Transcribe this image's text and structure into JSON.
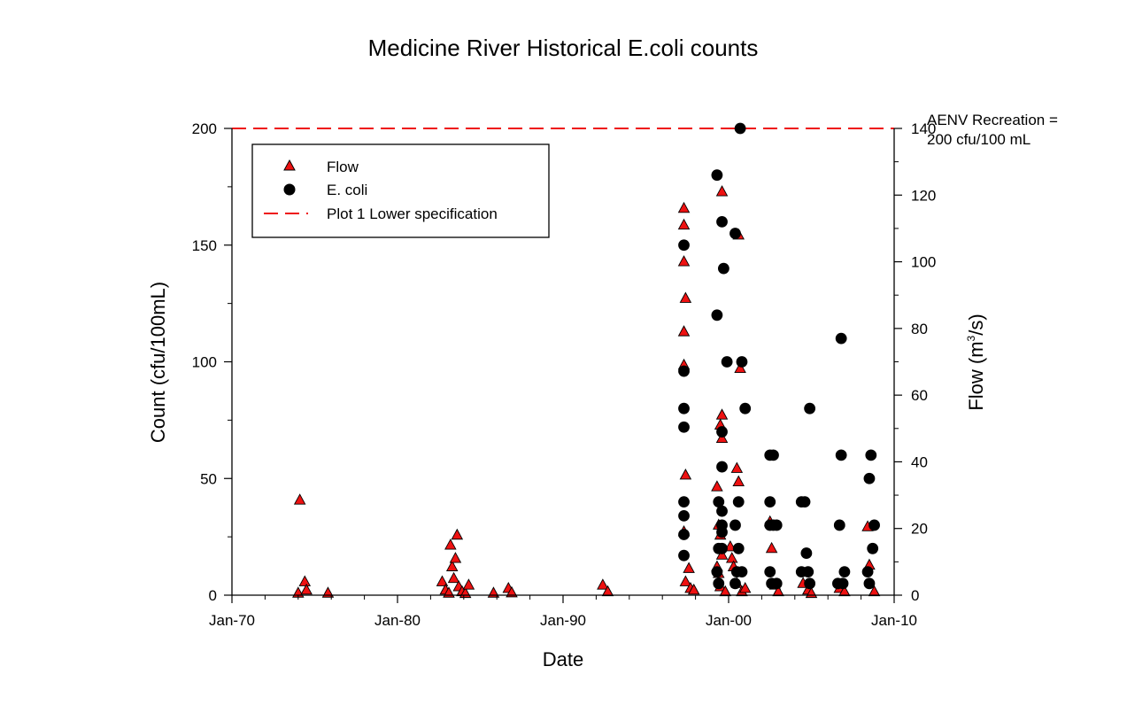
{
  "chart_data": {
    "type": "scatter",
    "title": "Medicine River Historical E.coli counts",
    "xlabel": "Date",
    "ylabel": "Count (cfu/100mL)",
    "y2label_main": "Flow (m",
    "y2label_sup": "3",
    "y2label_end": "/s)",
    "xlim": [
      1970,
      2010
    ],
    "ylim": [
      0,
      200
    ],
    "y2lim": [
      0,
      140
    ],
    "x_ticks": [
      {
        "value": 1970,
        "label": "Jan-70"
      },
      {
        "value": 1980,
        "label": "Jan-80"
      },
      {
        "value": 1990,
        "label": "Jan-90"
      },
      {
        "value": 2000,
        "label": "Jan-00"
      },
      {
        "value": 2010,
        "label": "Jan-10"
      }
    ],
    "y_ticks": [
      0,
      50,
      100,
      150,
      200
    ],
    "y2_ticks": [
      0,
      20,
      40,
      60,
      80,
      100,
      120,
      140
    ],
    "grid": false,
    "legend_position": "top-left",
    "legend": [
      {
        "label": "Flow",
        "marker": "triangle"
      },
      {
        "label": "E. coli",
        "marker": "circle"
      },
      {
        "label": "Plot 1 Lower specification",
        "marker": "dashed-line"
      }
    ],
    "annotation": [
      "AENV Recreation =",
      "200 cfu/100 mL"
    ],
    "reference_line": {
      "name": "Plot 1 Lower specification",
      "y": 200
    },
    "colors": {
      "flow": "#ee1111",
      "ecoli": "#000000",
      "reference": "#ee1111"
    },
    "series": [
      {
        "name": "Flow",
        "axis": "right",
        "marker": "triangle",
        "points": [
          [
            1974.1,
            28.5
          ],
          [
            1974.0,
            0.6
          ],
          [
            1974.4,
            4.0
          ],
          [
            1974.5,
            1.5
          ],
          [
            1975.8,
            0.6
          ],
          [
            1982.7,
            4.0
          ],
          [
            1982.9,
            1.5
          ],
          [
            1983.1,
            0.6
          ],
          [
            1983.2,
            15.0
          ],
          [
            1983.3,
            8.5
          ],
          [
            1983.4,
            5.0
          ],
          [
            1983.5,
            11.0
          ],
          [
            1983.6,
            18.0
          ],
          [
            1983.7,
            2.5
          ],
          [
            1983.9,
            1.0
          ],
          [
            1984.1,
            0.5
          ],
          [
            1984.3,
            3.0
          ],
          [
            1985.8,
            0.6
          ],
          [
            1986.7,
            2.0
          ],
          [
            1986.9,
            0.7
          ],
          [
            1992.4,
            3.0
          ],
          [
            1992.7,
            1.0
          ],
          [
            1997.3,
            116.0
          ],
          [
            1997.3,
            111.0
          ],
          [
            1997.3,
            100.0
          ],
          [
            1997.4,
            89.0
          ],
          [
            1997.3,
            79.0
          ],
          [
            1997.3,
            69.0
          ],
          [
            1997.4,
            36.0
          ],
          [
            1997.3,
            19.0
          ],
          [
            1997.6,
            8.0
          ],
          [
            1997.4,
            4.0
          ],
          [
            1997.7,
            2.0
          ],
          [
            1997.9,
            1.5
          ],
          [
            1999.6,
            121.0
          ],
          [
            1999.6,
            54.0
          ],
          [
            1999.5,
            51.0
          ],
          [
            1999.6,
            47.0
          ],
          [
            1999.3,
            32.5
          ],
          [
            1999.4,
            21.0
          ],
          [
            1999.5,
            18.0
          ],
          [
            1999.6,
            12.0
          ],
          [
            1999.3,
            8.5
          ],
          [
            1999.4,
            6.5
          ],
          [
            1999.5,
            2.5
          ],
          [
            1999.8,
            1.0
          ],
          [
            2000.1,
            14.5
          ],
          [
            2000.2,
            11.0
          ],
          [
            2000.3,
            8.5
          ],
          [
            2000.5,
            38.0
          ],
          [
            2000.6,
            34.0
          ],
          [
            2000.6,
            108.0
          ],
          [
            2000.7,
            68.0
          ],
          [
            2000.5,
            3.5
          ],
          [
            2000.8,
            1.0
          ],
          [
            2001.0,
            2.0
          ],
          [
            2002.5,
            22.0
          ],
          [
            2002.6,
            14.0
          ],
          [
            2002.8,
            3.0
          ],
          [
            2003.0,
            1.0
          ],
          [
            2004.5,
            3.5
          ],
          [
            2004.8,
            1.5
          ],
          [
            2005.0,
            0.5
          ],
          [
            2006.7,
            2.0
          ],
          [
            2007.0,
            1.0
          ],
          [
            2008.4,
            20.5
          ],
          [
            2008.5,
            9.0
          ],
          [
            2008.8,
            1.0
          ]
        ]
      },
      {
        "name": "E. coli",
        "axis": "left",
        "marker": "circle",
        "points": [
          [
            1997.3,
            150
          ],
          [
            1997.3,
            96
          ],
          [
            1997.3,
            80
          ],
          [
            1997.3,
            72
          ],
          [
            1997.3,
            40
          ],
          [
            1997.3,
            34
          ],
          [
            1997.3,
            26
          ],
          [
            1997.3,
            17
          ],
          [
            1999.3,
            180
          ],
          [
            1999.6,
            160
          ],
          [
            1999.7,
            140
          ],
          [
            1999.3,
            120
          ],
          [
            1999.9,
            100
          ],
          [
            1999.6,
            70
          ],
          [
            1999.6,
            55
          ],
          [
            1999.4,
            40
          ],
          [
            1999.6,
            36
          ],
          [
            1999.6,
            30
          ],
          [
            1999.6,
            27
          ],
          [
            1999.4,
            20
          ],
          [
            1999.6,
            20
          ],
          [
            1999.3,
            10
          ],
          [
            1999.4,
            5
          ],
          [
            2000.4,
            155
          ],
          [
            2000.7,
            200
          ],
          [
            2000.8,
            100
          ],
          [
            2001.0,
            80
          ],
          [
            2000.6,
            40
          ],
          [
            2000.4,
            30
          ],
          [
            2000.6,
            20
          ],
          [
            2000.5,
            10
          ],
          [
            2000.8,
            10
          ],
          [
            2000.4,
            5
          ],
          [
            2002.5,
            60
          ],
          [
            2002.7,
            60
          ],
          [
            2002.5,
            40
          ],
          [
            2002.5,
            30
          ],
          [
            2002.7,
            30
          ],
          [
            2002.9,
            30
          ],
          [
            2002.5,
            10
          ],
          [
            2002.6,
            5
          ],
          [
            2002.9,
            5
          ],
          [
            2004.4,
            40
          ],
          [
            2004.6,
            40
          ],
          [
            2004.9,
            80
          ],
          [
            2004.7,
            18
          ],
          [
            2004.4,
            10
          ],
          [
            2004.8,
            10
          ],
          [
            2004.9,
            5
          ],
          [
            2006.8,
            110
          ],
          [
            2006.8,
            60
          ],
          [
            2006.7,
            30
          ],
          [
            2007.0,
            10
          ],
          [
            2006.6,
            5
          ],
          [
            2006.9,
            5
          ],
          [
            2008.6,
            60
          ],
          [
            2008.5,
            50
          ],
          [
            2008.8,
            30
          ],
          [
            2008.7,
            20
          ],
          [
            2008.4,
            10
          ],
          [
            2008.5,
            5
          ]
        ]
      }
    ]
  }
}
